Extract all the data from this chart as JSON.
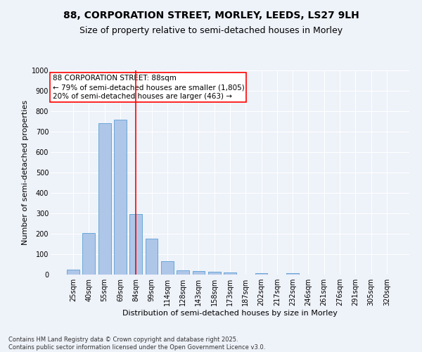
{
  "title_line1": "88, CORPORATION STREET, MORLEY, LEEDS, LS27 9LH",
  "title_line2": "Size of property relative to semi-detached houses in Morley",
  "xlabel": "Distribution of semi-detached houses by size in Morley",
  "ylabel": "Number of semi-detached properties",
  "footer_line1": "Contains HM Land Registry data © Crown copyright and database right 2025.",
  "footer_line2": "Contains public sector information licensed under the Open Government Licence v3.0.",
  "categories": [
    "25sqm",
    "40sqm",
    "55sqm",
    "69sqm",
    "84sqm",
    "99sqm",
    "114sqm",
    "128sqm",
    "143sqm",
    "158sqm",
    "173sqm",
    "187sqm",
    "202sqm",
    "217sqm",
    "232sqm",
    "246sqm",
    "261sqm",
    "276sqm",
    "291sqm",
    "305sqm",
    "320sqm"
  ],
  "values": [
    25,
    205,
    740,
    760,
    295,
    175,
    65,
    20,
    18,
    13,
    12,
    0,
    7,
    0,
    8,
    0,
    0,
    0,
    0,
    0,
    0
  ],
  "bar_color": "#aec6e8",
  "bar_edge_color": "#5a9fd4",
  "vline_x_index": 4,
  "vline_color": "red",
  "ylim": [
    0,
    1000
  ],
  "yticks": [
    0,
    100,
    200,
    300,
    400,
    500,
    600,
    700,
    800,
    900,
    1000
  ],
  "annotation_text_line1": "88 CORPORATION STREET: 88sqm",
  "annotation_text_line2": "← 79% of semi-detached houses are smaller (1,805)",
  "annotation_text_line3": "20% of semi-detached houses are larger (463) →",
  "annotation_box_color": "white",
  "annotation_box_edge_color": "red",
  "background_color": "#eef2f9",
  "grid_color": "white",
  "title_fontsize": 10,
  "subtitle_fontsize": 9,
  "axis_label_fontsize": 8,
  "tick_fontsize": 7,
  "annotation_fontsize": 7.5,
  "footer_fontsize": 6
}
